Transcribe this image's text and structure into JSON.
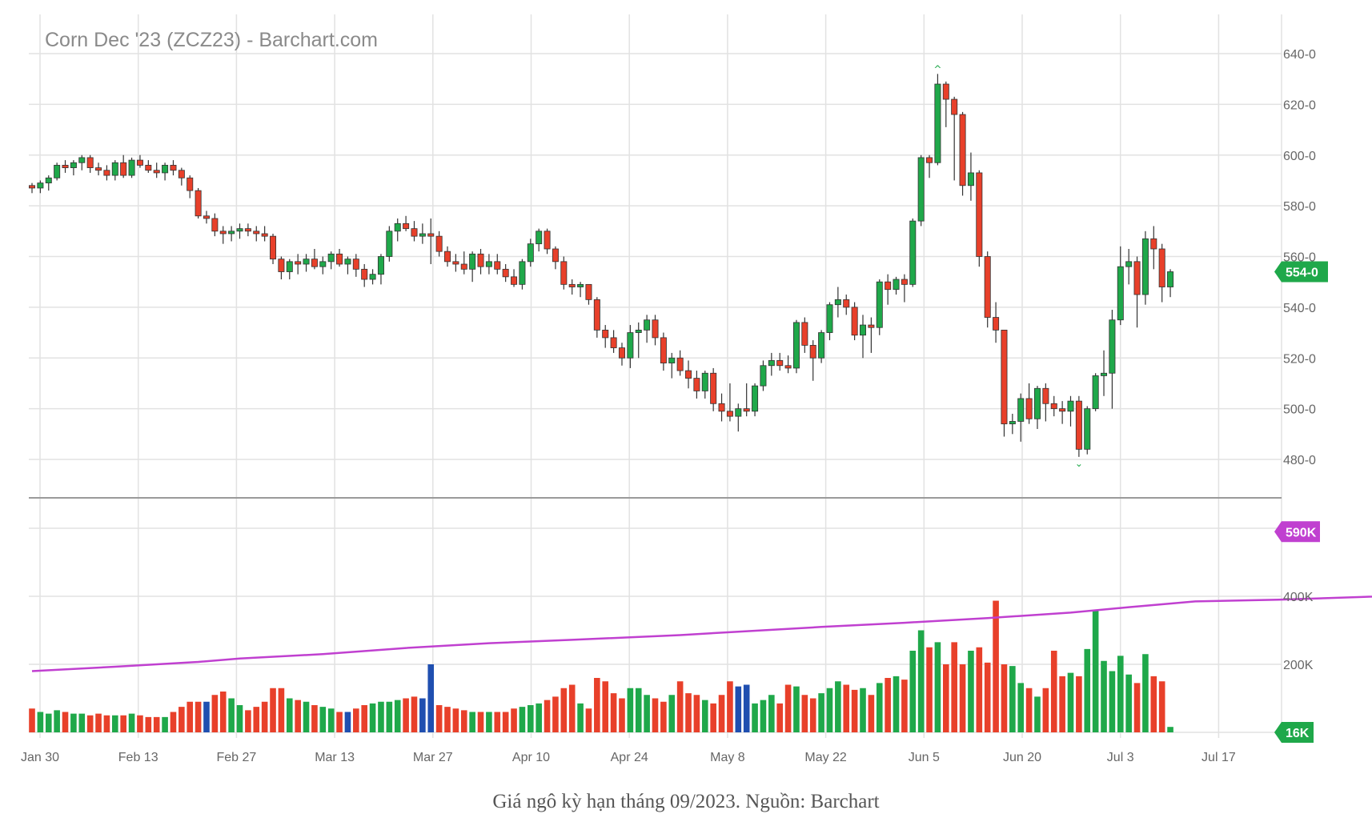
{
  "title": "Corn Dec '23 (ZCZ23) - Barchart.com",
  "caption": "Giá ngô kỳ hạn tháng 09/2023. Nguồn: Barchart",
  "colors": {
    "up": "#1fa84a",
    "down": "#e8402a",
    "neutral": "#1f4fb0",
    "open_interest": "#c040d0",
    "price_badge": "#1fa84a",
    "oi_badge": "#c040d0",
    "vol_badge": "#1fa84a"
  },
  "chart_data": {
    "type": "candlestick",
    "x_tick_labels": [
      "Jan 30",
      "Feb 13",
      "Feb 27",
      "Mar 13",
      "Mar 27",
      "Apr 10",
      "Apr 24",
      "May 8",
      "May 22",
      "Jun 5",
      "Jun 20",
      "Jul 3",
      "Jul 17"
    ],
    "price_axis": {
      "ticks": [
        "480-0",
        "500-0",
        "520-0",
        "540-0",
        "560-0",
        "580-0",
        "600-0",
        "620-0",
        "640-0"
      ],
      "range": [
        470,
        645
      ]
    },
    "volume_axis": {
      "ticks": [
        "200K",
        "400K"
      ],
      "range": [
        0,
        620000
      ]
    },
    "grid": true,
    "last_price": "554-0",
    "last_open_interest": "590K",
    "last_volume": "16K",
    "high_marker": "^",
    "low_marker": "⌄",
    "candles": [
      [
        588,
        589,
        585,
        587,
        70000
      ],
      [
        587,
        590,
        585,
        589,
        60000
      ],
      [
        589,
        592,
        586,
        591,
        55000
      ],
      [
        591,
        597,
        590,
        596,
        65000
      ],
      [
        596,
        598,
        593,
        595,
        60000
      ],
      [
        595,
        598,
        592,
        597,
        55000
      ],
      [
        597,
        600,
        594,
        599,
        55000
      ],
      [
        599,
        600,
        593,
        595,
        50000
      ],
      [
        595,
        597,
        592,
        594,
        55000
      ],
      [
        594,
        596,
        590,
        592,
        50000
      ],
      [
        592,
        598,
        590,
        597,
        50000
      ],
      [
        597,
        600,
        591,
        592,
        50000
      ],
      [
        592,
        599,
        591,
        598,
        55000
      ],
      [
        598,
        600,
        595,
        596,
        50000
      ],
      [
        596,
        598,
        593,
        594,
        45000
      ],
      [
        594,
        597,
        591,
        593,
        45000
      ],
      [
        593,
        597,
        590,
        596,
        45000
      ],
      [
        596,
        598,
        592,
        594,
        60000
      ],
      [
        594,
        595,
        588,
        591,
        75000
      ],
      [
        591,
        592,
        583,
        586,
        90000
      ],
      [
        586,
        587,
        575,
        576,
        90000
      ],
      [
        576,
        578,
        573,
        575,
        90000,
        "n"
      ],
      [
        575,
        577,
        568,
        570,
        110000
      ],
      [
        570,
        572,
        565,
        569,
        120000
      ],
      [
        569,
        572,
        566,
        570,
        100000
      ],
      [
        570,
        573,
        567,
        571,
        80000
      ],
      [
        571,
        573,
        568,
        570,
        65000
      ],
      [
        570,
        572,
        566,
        569,
        75000
      ],
      [
        569,
        572,
        566,
        568,
        90000
      ],
      [
        568,
        569,
        557,
        559,
        130000
      ],
      [
        559,
        560,
        551,
        554,
        130000
      ],
      [
        554,
        559,
        551,
        558,
        100000
      ],
      [
        558,
        561,
        553,
        557,
        95000
      ],
      [
        557,
        561,
        554,
        559,
        90000
      ],
      [
        559,
        563,
        555,
        556,
        80000
      ],
      [
        556,
        560,
        553,
        558,
        75000
      ],
      [
        558,
        562,
        555,
        561,
        70000
      ],
      [
        561,
        563,
        556,
        557,
        60000
      ],
      [
        557,
        560,
        553,
        559,
        60000,
        "n"
      ],
      [
        559,
        561,
        552,
        555,
        70000
      ],
      [
        555,
        557,
        548,
        551,
        80000
      ],
      [
        551,
        555,
        549,
        553,
        85000
      ],
      [
        553,
        561,
        549,
        560,
        90000
      ],
      [
        560,
        572,
        558,
        570,
        90000
      ],
      [
        570,
        575,
        566,
        573,
        95000
      ],
      [
        573,
        576,
        570,
        571,
        100000
      ],
      [
        571,
        574,
        566,
        568,
        105000
      ],
      [
        568,
        573,
        565,
        569,
        100000,
        "n"
      ],
      [
        569,
        575,
        557,
        568,
        200000,
        "n"
      ],
      [
        568,
        570,
        560,
        562,
        80000
      ],
      [
        562,
        564,
        556,
        558,
        75000
      ],
      [
        558,
        561,
        554,
        557,
        70000
      ],
      [
        557,
        562,
        553,
        555,
        65000
      ],
      [
        555,
        562,
        550,
        561,
        60000
      ],
      [
        561,
        563,
        553,
        556,
        60000
      ],
      [
        556,
        561,
        553,
        558,
        60000
      ],
      [
        558,
        561,
        553,
        555,
        60000
      ],
      [
        555,
        557,
        550,
        552,
        60000
      ],
      [
        552,
        555,
        548,
        549,
        70000
      ],
      [
        549,
        559,
        547,
        558,
        75000
      ],
      [
        558,
        567,
        556,
        565,
        80000
      ],
      [
        565,
        571,
        562,
        570,
        85000
      ],
      [
        570,
        571,
        561,
        563,
        95000
      ],
      [
        563,
        564,
        555,
        558,
        105000
      ],
      [
        558,
        560,
        547,
        549,
        130000
      ],
      [
        549,
        551,
        545,
        548,
        140000
      ],
      [
        548,
        550,
        544,
        549,
        85000
      ],
      [
        549,
        549,
        541,
        543,
        70000
      ],
      [
        543,
        544,
        528,
        531,
        160000
      ],
      [
        531,
        533,
        524,
        528,
        150000
      ],
      [
        528,
        531,
        522,
        524,
        115000
      ],
      [
        524,
        526,
        517,
        520,
        100000
      ],
      [
        520,
        533,
        516,
        530,
        130000
      ],
      [
        530,
        534,
        520,
        531,
        130000
      ],
      [
        531,
        537,
        526,
        535,
        110000
      ],
      [
        535,
        537,
        525,
        528,
        100000
      ],
      [
        528,
        530,
        515,
        518,
        90000
      ],
      [
        518,
        522,
        512,
        520,
        110000
      ],
      [
        520,
        523,
        513,
        515,
        150000
      ],
      [
        515,
        519,
        508,
        512,
        115000
      ],
      [
        512,
        515,
        504,
        507,
        110000
      ],
      [
        507,
        515,
        504,
        514,
        95000
      ],
      [
        514,
        516,
        499,
        502,
        85000
      ],
      [
        502,
        506,
        495,
        499,
        110000
      ],
      [
        499,
        510,
        495,
        497,
        150000
      ],
      [
        497,
        502,
        491,
        500,
        135000,
        "n"
      ],
      [
        500,
        510,
        497,
        499,
        140000,
        "n"
      ],
      [
        499,
        510,
        497,
        509,
        85000
      ],
      [
        509,
        519,
        507,
        517,
        95000
      ],
      [
        517,
        522,
        513,
        519,
        110000
      ],
      [
        519,
        522,
        515,
        517,
        85000
      ],
      [
        517,
        521,
        514,
        516,
        140000
      ],
      [
        516,
        535,
        514,
        534,
        135000
      ],
      [
        534,
        536,
        522,
        525,
        110000
      ],
      [
        525,
        527,
        511,
        520,
        100000
      ],
      [
        520,
        531,
        518,
        530,
        115000
      ],
      [
        530,
        542,
        527,
        541,
        130000
      ],
      [
        541,
        548,
        536,
        543,
        150000
      ],
      [
        543,
        545,
        537,
        540,
        140000
      ],
      [
        540,
        542,
        527,
        529,
        125000
      ],
      [
        529,
        537,
        520,
        533,
        130000
      ],
      [
        533,
        536,
        522,
        532,
        110000
      ],
      [
        532,
        551,
        529,
        550,
        145000
      ],
      [
        550,
        553,
        541,
        547,
        160000
      ],
      [
        547,
        552,
        545,
        551,
        165000
      ],
      [
        551,
        553,
        542,
        549,
        155000
      ],
      [
        549,
        575,
        548,
        574,
        240000
      ],
      [
        574,
        600,
        572,
        599,
        300000
      ],
      [
        599,
        600,
        591,
        597,
        250000
      ],
      [
        597,
        632,
        596,
        628,
        265000
      ],
      [
        628,
        629,
        611,
        622,
        200000
      ],
      [
        622,
        623,
        590,
        616,
        265000
      ],
      [
        616,
        617,
        584,
        588,
        200000
      ],
      [
        588,
        601,
        582,
        593,
        240000
      ],
      [
        593,
        594,
        556,
        560,
        250000
      ],
      [
        560,
        562,
        532,
        536,
        205000
      ],
      [
        536,
        542,
        526,
        531,
        387000
      ],
      [
        531,
        531,
        489,
        494,
        200000
      ],
      [
        494,
        498,
        490,
        495,
        195000
      ],
      [
        495,
        506,
        487,
        504,
        145000
      ],
      [
        504,
        510,
        494,
        496,
        130000
      ],
      [
        496,
        509,
        492,
        508,
        105000
      ],
      [
        508,
        510,
        495,
        502,
        130000
      ],
      [
        502,
        505,
        497,
        500,
        240000
      ],
      [
        500,
        503,
        494,
        499,
        165000
      ],
      [
        499,
        505,
        493,
        503,
        175000
      ],
      [
        503,
        505,
        481,
        484,
        165000
      ],
      [
        484,
        501,
        482,
        500,
        245000
      ],
      [
        500,
        514,
        499,
        513,
        360000
      ],
      [
        513,
        523,
        505,
        514,
        210000
      ],
      [
        514,
        539,
        500,
        535,
        180000
      ],
      [
        535,
        564,
        533,
        556,
        225000
      ],
      [
        556,
        563,
        549,
        558,
        170000
      ],
      [
        558,
        560,
        532,
        545,
        145000
      ],
      [
        545,
        570,
        541,
        567,
        230000
      ],
      [
        567,
        572,
        555,
        563,
        165000
      ],
      [
        563,
        565,
        542,
        548,
        150000
      ],
      [
        548,
        555,
        544,
        554,
        16000
      ]
    ],
    "open_interest": [
      [
        0,
        180000
      ],
      [
        10,
        193000
      ],
      [
        20,
        207000
      ],
      [
        25,
        217000
      ],
      [
        35,
        230000
      ],
      [
        45,
        248000
      ],
      [
        55,
        262000
      ],
      [
        65,
        272000
      ],
      [
        78,
        286000
      ],
      [
        85,
        296000
      ],
      [
        95,
        310000
      ],
      [
        105,
        322000
      ],
      [
        115,
        336000
      ],
      [
        125,
        352000
      ],
      [
        132,
        368000
      ],
      [
        140,
        385000
      ],
      [
        150,
        390000
      ],
      [
        160,
        398000
      ],
      [
        170,
        407000
      ],
      [
        178,
        420000
      ],
      [
        183,
        445000
      ],
      [
        188,
        470000
      ],
      [
        192,
        510000
      ],
      [
        196,
        535000
      ],
      [
        200,
        530000
      ],
      [
        204,
        535000
      ],
      [
        208,
        530000
      ],
      [
        212,
        540000
      ],
      [
        218,
        550000
      ],
      [
        222,
        560000
      ],
      [
        228,
        573000
      ],
      [
        234,
        573000
      ],
      [
        239,
        580000
      ],
      [
        243,
        590000
      ]
    ]
  }
}
